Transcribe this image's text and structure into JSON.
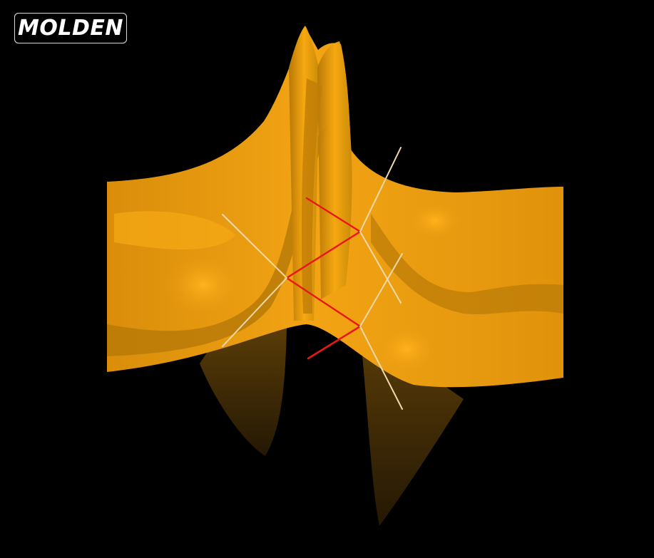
{
  "app": {
    "logo_text": "MOLDEN"
  },
  "colors": {
    "background": "#000000",
    "surface_base": "#e79a10",
    "surface_light": "#f8a812",
    "surface_mid": "#c98408",
    "surface_dark": "#7a5006",
    "surface_shadow": "#2a1c04",
    "bond_red": "#e81818",
    "bond_cream": "#f0d8a8"
  },
  "icons": [
    "molecule-bond-lines",
    "orbital-surface"
  ]
}
